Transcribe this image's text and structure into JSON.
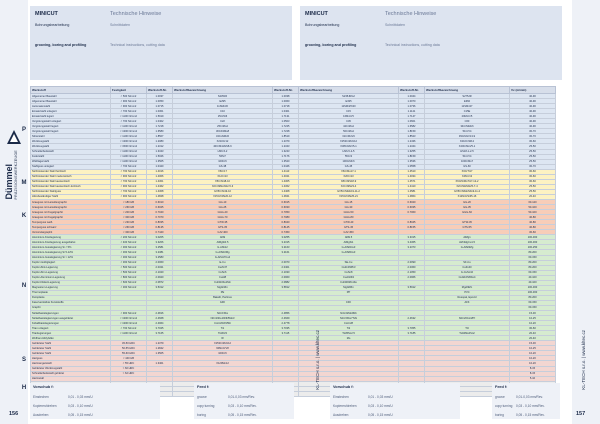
{
  "brand": {
    "name": "Dümmel",
    "tag": "PRÄZISIONSWERKZEUGE"
  },
  "header_left": {
    "title": "MINICUT",
    "subtitle": "Bohrungsbearbeitung",
    "subtitle_en": "grooving, boring and profiling",
    "tech_title": "Technische Hinweise",
    "tech_sub": "Schnittdaten",
    "tech_en": "Technical instructions, cutting data"
  },
  "header_right": {
    "title": "MINICUT",
    "subtitle": "Bohrungsbearbeitung",
    "subtitle_en": "grooving, boring and profiling",
    "tech_title": "Technische Hinweise",
    "tech_sub": "Schnittdaten",
    "tech_en": "Technical instructions, cutting data"
  },
  "table": {
    "headers": [
      "Werkstoff",
      "Festigkeit",
      "Werkstoff-Nr.",
      "Werkstoffbezeichnung",
      "Werkstoff-Nr.",
      "Werkstoffbezeichnung",
      "Werkstoff-Nr.",
      "Werkstoffbezeichnung",
      "Vc (m/min)"
    ],
    "groups": [
      {
        "code": "P",
        "cls": "P",
        "rows": [
          [
            "Allgemeiner Baustahl",
            "< 500 N/mm2",
            "1.0037",
            "S235JR",
            "1.0038",
            "S235JRG2",
            "1.0044",
            "S275JR",
            "40-90"
          ],
          [
            "Allgemeiner Baustahl",
            "< 900 N/mm2",
            "1.0050",
            "E295",
            "1.0060",
            "E335",
            "1.0070",
            "E360",
            "40-90"
          ],
          [
            "Automatenstahl",
            "< 900 N/mm2",
            "1.0715",
            "11SMn30",
            "1.0718",
            "11SMnPb30",
            "1.0736",
            "11SMn37",
            "40-90"
          ],
          [
            "Einsatzstahl unlegiert",
            "< 700 N/mm2",
            "1.0301",
            "C10",
            "1.0401",
            "C15",
            "1.1141",
            "C15E",
            "40-90"
          ],
          [
            "Einsatzstahl legiert",
            "< 1100 N/mm2",
            "1.5919",
            "15CrNi6",
            "1.7131",
            "16MnCr5",
            "1.7147",
            "20MnCr5",
            "40-90"
          ],
          [
            "Vergütungsstahl unlegiert",
            "< 700 N/mm2",
            "1.0402",
            "C22",
            "1.0503",
            "C45",
            "1.0601",
            "C60",
            "40-90"
          ],
          [
            "Vergütungsstahl legiert",
            "< 1100 N/mm2",
            "1.7218",
            "25CrMo4",
            "1.7225",
            "42CrMo4",
            "1.6582",
            "34CrNiMo6",
            "40-90"
          ],
          [
            "Vergütungsstahl legiert",
            "< 1300 N/mm2",
            "1.6580",
            "30CrNiMo8",
            "1.7228",
            "50CrMo4",
            "1.8159",
            "51CrV4",
            "30-70"
          ],
          [
            "Nitrierstahl",
            "< 1100 N/mm2",
            "1.8507",
            "34CrAlMo5",
            "1.8519",
            "31CrMoV9",
            "1.8523",
            "39CrMoV13-9",
            "30-70"
          ],
          [
            "Werkzeugstahl",
            "< 1300 N/mm2",
            "1.2080",
            "X210Cr12",
            "1.2379",
            "X153CrMoV12",
            "1.2436",
            "X210CrW12",
            "30-60"
          ],
          [
            "Werkzeugstahl",
            "< 1500 N/mm2",
            "1.2312",
            "40CrMnMoS8-6",
            "1.2343",
            "X38CrMoV5-1",
            "1.2344",
            "X40CrMoV5-1",
            "25-50"
          ],
          [
            "Schnellarbeitsstahl",
            "< 1100 N/mm2",
            "1.3343",
            "HS6-5-2",
            "1.3243",
            "HS6-5-2-5",
            "1.3255",
            "HS18-1-2-5",
            "25-50"
          ],
          [
            "Federstahl",
            "< 1100 N/mm2",
            "1.5026",
            "56Si7",
            "1.7176",
            "55Cr3",
            "1.8159",
            "51CrV4",
            "25-50"
          ],
          [
            "Wälzlagerstahl",
            "< 1100 N/mm2",
            "1.3505",
            "100Cr6",
            "1.3520",
            "100CrMn6",
            "1.3536",
            "100CrMo7",
            "25-50"
          ],
          [
            "Stahlguss unlegiert",
            "< 700 N/mm2",
            "1.0420",
            "GS-38",
            "1.0446",
            "GS-45",
            "1.0558",
            "GS-60",
            "30-70"
          ]
        ]
      },
      {
        "code": "M",
        "cls": "M",
        "rows": [
          [
            "Nichtrostender Stahl ferritisch",
            "< 700 N/mm2",
            "1.4016",
            "X6Cr17",
            "1.4113",
            "X6CrMo17-1",
            "1.4510",
            "X3CrTi17",
            "30-60"
          ],
          [
            "Nichtrostender Stahl martensitisch",
            "< 900 N/mm2",
            "1.4006",
            "X12Cr13",
            "1.4021",
            "X20Cr13",
            "1.4034",
            "X46Cr13",
            "30-60"
          ],
          [
            "Nichtrostender Stahl austenitisch",
            "< 700 N/mm2",
            "1.4301",
            "X5CrNi18-10",
            "1.4305",
            "X8CrNiS18-9",
            "1.4571",
            "X6CrNiMoTi17-12-2",
            "30-60"
          ],
          [
            "Nichtrostender Stahl austenitisch-ferritisch",
            "< 900 N/mm2",
            "1.4462",
            "X2CrNiMoN22-5-3",
            "1.4362",
            "X2CrNiN23-4",
            "1.4410",
            "X2CrNiMoN25-7-4",
            "25-50"
          ],
          [
            "Nichtrostender Stahlguss",
            "< 700 N/mm2",
            "1.4308",
            "GX5CrNi19-10",
            "1.4408",
            "GX5CrNiMo19-11-2",
            "1.4581",
            "GX5CrNiMoNb19-11-2",
            "25-50"
          ],
          [
            "Hitzebeständiger Stahl",
            "< 900 N/mm2",
            "1.4828",
            "X15CrNiSi20-12",
            "1.4841",
            "X15CrNiSi25-21",
            "1.4864",
            "X12NiCrSi35-16",
            "20-40"
          ]
        ]
      },
      {
        "code": "K",
        "cls": "K",
        "rows": [
          [
            "Grauguss mit Lamellengraphit",
            "< 180 HB",
            "0.6010",
            "GG-10",
            "0.6015",
            "GG-15",
            "0.6020",
            "GG-20",
            "60-120"
          ],
          [
            "Grauguss mit Lamellengraphit",
            "< 260 HB",
            "0.6025",
            "GG-25",
            "0.6030",
            "GG-30",
            "0.6035",
            "GG-35",
            "50-100"
          ],
          [
            "Grauguss mit Kugelgraphit",
            "< 200 HB",
            "0.7040",
            "GGG-40",
            "0.7050",
            "GGG-50",
            "0.7060",
            "GGG-60",
            "50-100"
          ],
          [
            "Grauguss mit Kugelgraphit",
            "< 300 HB",
            "0.7070",
            "GGG-70",
            "0.7080",
            "GGG-80",
            "",
            "",
            "40-80"
          ],
          [
            "Temperguss weiß",
            "< 230 HB",
            "0.8035",
            "GTW-35",
            "0.8040",
            "GTW-40",
            "0.8045",
            "GTW-45",
            "40-80"
          ],
          [
            "Temperguss schwarz",
            "< 260 HB",
            "0.8135",
            "GTS-35",
            "0.8145",
            "GTS-45",
            "0.8155",
            "GTS-55",
            "40-80"
          ],
          [
            "Vermiculargraphit",
            "< 300 HB",
            "0.7440",
            "GJV-400",
            "0.7450",
            "GJV-450",
            "",
            "",
            "30-60"
          ]
        ]
      },
      {
        "code": "N",
        "cls": "N",
        "rows": [
          [
            "Aluminium-Knetlegierung",
            "< 200 N/mm2",
            "3.0205",
            "Al99",
            "3.0255",
            "Al99.5",
            "3.3315",
            "AlMg1",
            "100-300"
          ],
          [
            "Aluminium-Knetlegierung ausgehärtet",
            "< 400 N/mm2",
            "3.3206",
            "AlMgSi0.5",
            "3.2315",
            "AlMgSi1",
            "3.4365",
            "AlZnMgCu1.5",
            "100-300"
          ],
          [
            "Aluminium-Gusslegierung Si < 5%",
            "< 300 N/mm2",
            "3.2581",
            "G-AlSi12",
            "3.2163",
            "G-AlSi9Cu3",
            "3.2373",
            "G-AlSi9Mg",
            "100-250"
          ],
          [
            "Aluminium-Gusslegierung Si 5-12%",
            "< 300 N/mm2",
            "3.2381",
            "G-AlSi10Mg",
            "3.2161",
            "G-AlSi8Cu3",
            "",
            "",
            "80-200"
          ],
          [
            "Aluminium-Gusslegierung Si > 12%",
            "< 300 N/mm2",
            "3.2583",
            "G-AlSi17Cu4",
            "",
            "",
            "",
            "",
            "60-150"
          ],
          [
            "Kupfer niedriglegiert",
            "< 300 N/mm2",
            "2.0060",
            "E-Cu",
            "2.0070",
            "SE-Cu",
            "2.0090",
            "SF-Cu",
            "80-200"
          ],
          [
            "Kupfer-Zink-Legierung",
            "< 500 N/mm2",
            "2.0321",
            "CuZn37",
            "2.0401",
            "CuZn39Pb3",
            "2.0360",
            "CuZn40",
            "80-200"
          ],
          [
            "Kupfer-Zinn-Legierung",
            "< 500 N/mm2",
            "2.1020",
            "CuSn6",
            "2.1030",
            "CuSn8",
            "2.1050",
            "G-CuSn10",
            "60-150"
          ],
          [
            "Kupfer-Aluminium-Legierung",
            "< 800 N/mm2",
            "2.0920",
            "CuAl8",
            "2.0960",
            "CuAl10Ni",
            "2.0966",
            "CuAl10Ni5Fe4",
            "40-100"
          ],
          [
            "Kupfer-Nickel-Legierung",
            "< 600 N/mm2",
            "2.0872",
            "CuNi10Fe1Mn",
            "2.0882",
            "CuNi30Mn1Fe",
            "",
            "",
            "40-100"
          ],
          [
            "Magnesium-Legierung",
            "< 300 N/mm2",
            "3.5312",
            "MgAl3Zn",
            "3.5812",
            "MgAl8Zn",
            "3.5912",
            "MgAl9Zn",
            "100-300"
          ],
          [
            "Thermoplaste",
            "",
            "",
            "PE",
            "",
            "PP",
            "",
            "PVC",
            "100-300"
          ],
          [
            "Duroplaste",
            "",
            "",
            "Bakelit, Pertinax",
            "",
            "",
            "",
            "Resopal, Epoxid",
            "80-200"
          ],
          [
            "Faserverstärkte Kunststoffe",
            "",
            "",
            "GFK",
            "",
            "CFK",
            "",
            "AFK",
            "60-150"
          ],
          [
            "Graphit",
            "",
            "",
            "",
            "",
            "",
            "",
            "",
            "60-150"
          ],
          [
            "Nickelbasislegierungen",
            "< 900 N/mm2",
            "2.4816",
            "NiCr15Fe",
            "2.4856",
            "NiCr22Mo9Nb",
            "",
            "",
            "15-30"
          ],
          [
            "Nickelbasislegierungen ausgehärtet",
            "< 1300 N/mm2",
            "2.4668",
            "NiCr19Fe19Nb5Mo3",
            "2.4669",
            "NiCr15Fe7TiAl",
            "2.4632",
            "NiCr20Co18Ti",
            "10-25"
          ],
          [
            "Kobaltbasislegierungen",
            "< 1300 N/mm2",
            "2.4964",
            "CoCr20W15Ni",
            "2.4778",
            "CoCr28",
            "",
            "",
            "10-20"
          ],
          [
            "Titan unlegiert",
            "< 700 N/mm2",
            "3.7025",
            "Ti1",
            "3.7035",
            "Ti2",
            "3.7055",
            "Ti3",
            "30-60"
          ],
          [
            "Titanlegierungen",
            "< 1100 N/mm2",
            "3.7165",
            "TiAl6V4",
            "3.7115",
            "TiAl5Sn2.5",
            "3.7185",
            "TiAl4Mo4Sn2",
            "20-40"
          ],
          [
            "Wolfram-Molybdän",
            "",
            "",
            "W",
            "",
            "Mo",
            "",
            "",
            "20-40"
          ]
        ]
      },
      {
        "code": "S",
        "cls": "S",
        "rows": [
          [
            "Gehärteter Stahl",
            "45-50 HRC",
            "1.2379",
            "X153CrMoV12",
            "",
            "",
            "",
            "",
            "15-30"
          ],
          [
            "Gehärteter Stahl",
            "50-55 HRC",
            "1.2842",
            "90MnCrV8",
            "",
            "",
            "",
            "",
            "10-25"
          ],
          [
            "Gehärteter Stahl",
            "55-60 HRC",
            "1.3505",
            "100Cr6",
            "",
            "",
            "",
            "",
            "10-20"
          ],
          [
            "Hartguss",
            "< 440 HB",
            "",
            "",
            "",
            "",
            "",
            "",
            "10-20"
          ],
          [
            "Hartmanganstahl",
            "< 55 HRC",
            "1.3401",
            "X120Mn12",
            "",
            "",
            "",
            "",
            "10-20"
          ],
          [
            "Gehärteter Werkzeugstahl",
            "> 60 HRC",
            "",
            "",
            "",
            "",
            "",
            "",
            "8-15"
          ],
          [
            "Schnellarbeitsstahl gehärtet",
            "> 62 HRC",
            "",
            "",
            "",
            "",
            "",
            "",
            "8-15"
          ],
          [
            "Hartmetall",
            "",
            "",
            "",
            "",
            "",
            "",
            "",
            "5-10"
          ]
        ]
      },
      {
        "code": "H",
        "cls": "H",
        "rows": [
          [
            "",
            "",
            "",
            "",
            "",
            "",
            "",
            "",
            ""
          ],
          [
            "",
            "",
            "",
            "",
            "",
            "",
            "",
            "",
            ""
          ],
          [
            "",
            "",
            "",
            "",
            "",
            "",
            "",
            "",
            ""
          ]
        ]
      }
    ]
  },
  "feeds_left": [
    {
      "title": "Vorschub f:",
      "rows": [
        {
          "label": "Einstechen",
          "val": "0,01 - 0,03 mm/U"
        },
        {
          "label": "Kopieren/drehen",
          "val": "0,03 - 0,10 mm/U"
        },
        {
          "label": "Ausdrehen",
          "val": "0,05 - 0,15 mm/U"
        }
      ]
    },
    {
      "title": "Feed f:",
      "rows": [
        {
          "label": "groove",
          "val": "0,01-0,03 mm/Rev."
        },
        {
          "label": "copy turning",
          "val": "0,03 - 0,10 mm/Rev."
        },
        {
          "label": "boring",
          "val": "0,05 - 0,15 mm/Rev."
        }
      ]
    }
  ],
  "feeds_right": [
    {
      "title": "Vorschub f:",
      "rows": [
        {
          "label": "Einstechen",
          "val": "0,01 - 0,03 mm/U"
        },
        {
          "label": "Kopieren/drehen",
          "val": "0,03 - 0,10 mm/U"
        },
        {
          "label": "Ausdrehen",
          "val": "0,05 - 0,15 mm/U"
        }
      ]
    },
    {
      "title": "Feed f:",
      "rows": [
        {
          "label": "groove",
          "val": "0,01-0,03 mm/Rev."
        },
        {
          "label": "copy turning",
          "val": "0,03 - 0,10 mm/Rev."
        },
        {
          "label": "boring",
          "val": "0,05 - 0,15 mm/Rev."
        }
      ]
    }
  ],
  "page_left": "156",
  "page_right": "157",
  "side_text": "KL-TECH s.r.o. | www.kltec.cz"
}
